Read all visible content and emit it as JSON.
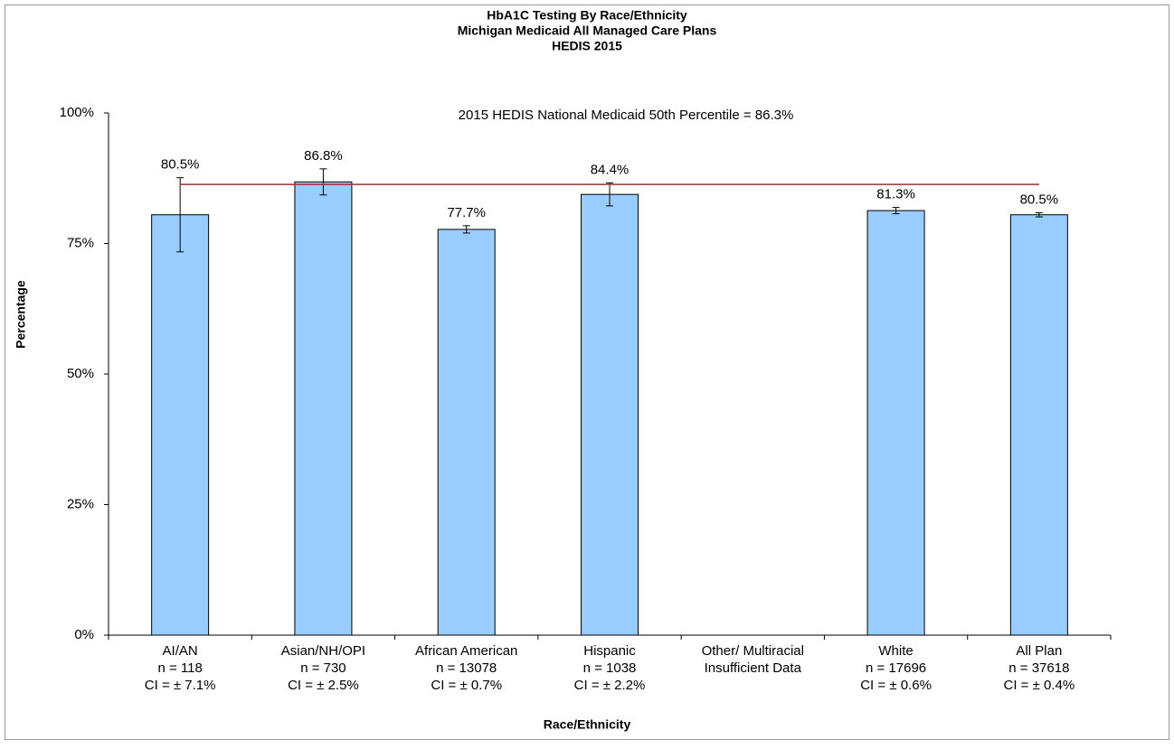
{
  "chart_data": {
    "type": "bar",
    "title": [
      "HbA1C Testing By Race/Ethnicity",
      "Michigan Medicaid All Managed Care Plans",
      "HEDIS 2015"
    ],
    "x_label": "Race/Ethnicity",
    "y_label": "Percentage",
    "categories": [
      [
        "AI/AN",
        "n = 118",
        "CI =  ± 7.1%"
      ],
      [
        "Asian/NH/OPI",
        "n = 730",
        "CI =  ± 2.5%"
      ],
      [
        "African American",
        "n = 13078",
        "CI =  ± 0.7%"
      ],
      [
        "Hispanic",
        "n = 1038",
        "CI =  ± 2.2%"
      ],
      [
        "Other/ Multiracial",
        "Insufficient Data"
      ],
      [
        "White",
        "n = 17696",
        "CI =  ± 0.6%"
      ],
      [
        "All Plan",
        "n = 37618",
        "CI =  ± 0.4%"
      ]
    ],
    "values": [
      80.5,
      86.8,
      77.7,
      84.4,
      null,
      81.3,
      80.5
    ],
    "value_labels": [
      "80.5%",
      "86.8%",
      "77.7%",
      "84.4%",
      null,
      "81.3%",
      "80.5%"
    ],
    "errors": [
      7.1,
      2.5,
      0.7,
      2.2,
      null,
      0.6,
      0.4
    ],
    "color": "#99ccff",
    "reference_line": {
      "value": 86.3,
      "label": "2015 HEDIS National Medicaid 50th Percentile = 86.3%",
      "color": "#993333"
    },
    "ylim": [
      0,
      100
    ],
    "yticks": [
      {
        "value": 0,
        "label": "0%"
      },
      {
        "value": 25,
        "label": "25%"
      },
      {
        "value": 50,
        "label": "50%"
      },
      {
        "value": 75,
        "label": "75%"
      },
      {
        "value": 100,
        "label": "100%"
      }
    ]
  }
}
